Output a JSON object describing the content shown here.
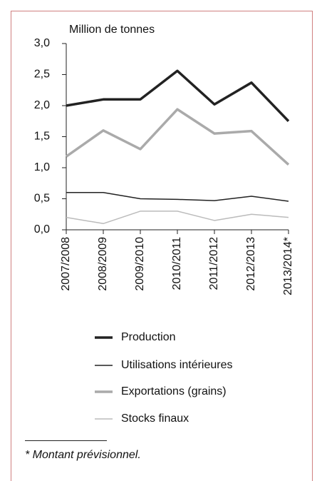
{
  "chart_data": {
    "type": "line",
    "ylabel": "Million de tonnes",
    "categories": [
      "2007/2008",
      "2008/2009",
      "2009/2010",
      "2010/2011",
      "2011/2012",
      "2012/2013",
      "2013/2014*"
    ],
    "series": [
      {
        "name": "Production",
        "color": "#222222",
        "width": 3.5,
        "values": [
          2.0,
          2.1,
          2.1,
          2.56,
          2.02,
          2.37,
          1.75
        ]
      },
      {
        "name": "Utilisations intérieures",
        "color": "#222222",
        "width": 1.5,
        "values": [
          0.6,
          0.6,
          0.5,
          0.49,
          0.47,
          0.54,
          0.46
        ]
      },
      {
        "name": "Exportations (grains)",
        "color": "#aaaaaa",
        "width": 3.5,
        "values": [
          1.18,
          1.6,
          1.3,
          1.94,
          1.55,
          1.59,
          1.05
        ]
      },
      {
        "name": "Stocks finaux",
        "color": "#bbbbbb",
        "width": 1.5,
        "values": [
          0.2,
          0.1,
          0.3,
          0.3,
          0.15,
          0.25,
          0.2
        ]
      }
    ],
    "ylim": [
      0,
      3
    ],
    "yticks": [
      {
        "value": 0,
        "label": "0,0"
      },
      {
        "value": 0.5,
        "label": "0,5"
      },
      {
        "value": 1,
        "label": "1,0"
      },
      {
        "value": 1.5,
        "label": "1,5"
      },
      {
        "value": 2,
        "label": "2,0"
      },
      {
        "value": 2.5,
        "label": "2,5"
      },
      {
        "value": 3,
        "label": "3,0"
      }
    ],
    "footnote": "* Montant prévisionnel."
  }
}
